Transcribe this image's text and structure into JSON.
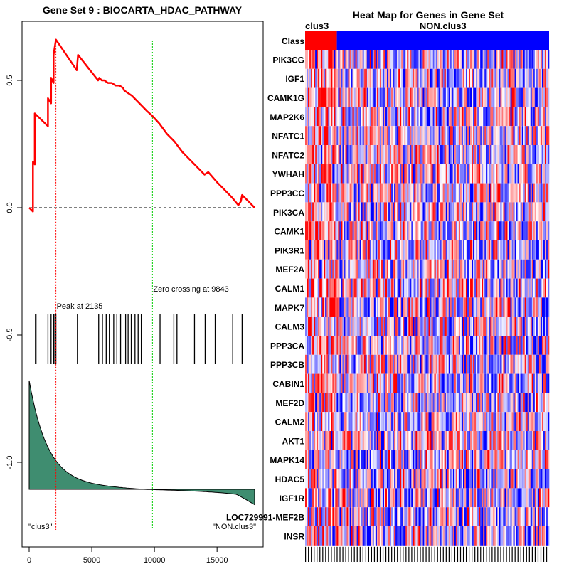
{
  "chart_data": [
    {
      "type": "line",
      "title": "Gene Set  9 : BIOCARTA_HDAC_PATHWAY",
      "xlabel": "",
      "ylabel": "",
      "xlim": [
        0,
        18000
      ],
      "ylim": [
        -1.3,
        0.7
      ],
      "x_ticks": [
        0,
        5000,
        10000,
        15000
      ],
      "x_tick_labels": [
        "0",
        "5000",
        "10000",
        "15000"
      ],
      "y_ticks": [
        -1.0,
        -0.5,
        0.0,
        0.5
      ],
      "y_tick_labels": [
        "-1.0",
        "-0.5",
        "0.0",
        "0.5"
      ],
      "running_enrichment_score": {
        "x": [
          0,
          300,
          300,
          450,
          450,
          1500,
          1500,
          1750,
          1750,
          1950,
          1950,
          2135,
          2135,
          3800,
          3900,
          5500,
          5600,
          5800,
          6000,
          6300,
          6600,
          6900,
          7200,
          7500,
          7600,
          8200,
          8800,
          9400,
          9843,
          10400,
          11000,
          11600,
          12200,
          12800,
          13400,
          14000,
          14300,
          15000,
          15600,
          16200,
          16700,
          16900,
          17000,
          17600,
          18000
        ],
        "y": [
          0.0,
          -0.015,
          0.18,
          0.17,
          0.37,
          0.32,
          0.43,
          0.41,
          0.51,
          0.49,
          0.6,
          0.66,
          0.66,
          0.54,
          0.6,
          0.5,
          0.51,
          0.5,
          0.5,
          0.49,
          0.49,
          0.48,
          0.48,
          0.47,
          0.46,
          0.44,
          0.41,
          0.38,
          0.36,
          0.33,
          0.29,
          0.26,
          0.22,
          0.19,
          0.16,
          0.13,
          0.14,
          0.1,
          0.07,
          0.04,
          0.01,
          0.025,
          0.05,
          0.02,
          0.0
        ]
      },
      "hit_positions": [
        500,
        550,
        1500,
        1750,
        1950,
        2050,
        2135,
        3850,
        5550,
        5850,
        6150,
        6400,
        6750,
        7000,
        7300,
        7700,
        7900,
        8150,
        8450,
        8700,
        8950,
        10450,
        11550,
        11800,
        13200,
        14050,
        14850,
        16250,
        17000
      ],
      "peak": {
        "x": 2135,
        "label": "Peak at 2135"
      },
      "zero_crossing": {
        "x": 9843,
        "label": "Zero crossing at 9843"
      },
      "left_class_label": "\"clus3\"",
      "right_class_label": "\"NON.clus3\"",
      "ranked_metric": {
        "start": 0.16,
        "top_decay": 0.26,
        "tail_end": -0.12
      },
      "colors": {
        "es_line": "#ff0000",
        "peak_line": "#ff0000",
        "zero_line": "#00cc00",
        "metric_fill": "#3f8d70",
        "hits": "#000000"
      }
    },
    {
      "type": "heatmap",
      "title": "Heat Map for Genes in Gene Set",
      "class_row_label": "Class",
      "classes": [
        {
          "name": "clus3",
          "fraction": 0.13,
          "color": "#ff0000"
        },
        {
          "name": "NON.clus3",
          "fraction": 0.87,
          "color": "#0000ff"
        }
      ],
      "genes": [
        "PIK3CG",
        "IGF1",
        "CAMK1G",
        "MAP2K6",
        "NFATC1",
        "NFATC2",
        "YWHAH",
        "PPP3CC",
        "PIK3CA",
        "CAMK1",
        "PIK3R1",
        "MEF2A",
        "CALM1",
        "MAPK7",
        "CALM3",
        "PPP3CA",
        "PPP3CB",
        "CABIN1",
        "MEF2D",
        "CALM2",
        "AKT1",
        "MAPK14",
        "HDAC5",
        "IGF1R",
        "LOC729991-MEF2B",
        "INSR"
      ],
      "color_scale": [
        "#0000ff",
        "#ffffff",
        "#ff0000"
      ],
      "n_columns": 170
    }
  ]
}
